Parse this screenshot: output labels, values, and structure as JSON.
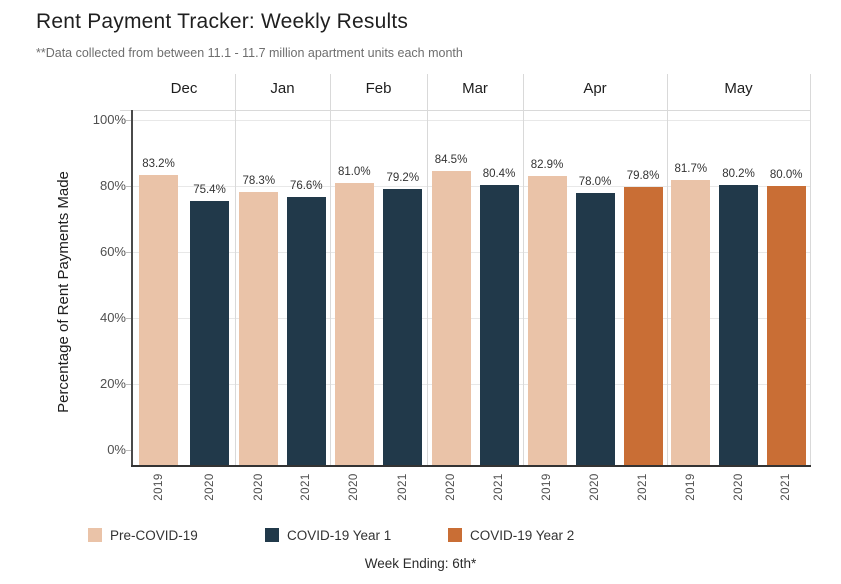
{
  "header": {
    "title": "Rent Payment Tracker: Weekly Results",
    "subtitle": "**Data collected from between 11.1 - 11.7 million apartment units each month"
  },
  "chart_data": {
    "type": "bar",
    "title": "Rent Payment Tracker: Weekly Results",
    "subtitle": "**Data collected from between 11.1 - 11.7 million apartment units each month",
    "ylabel": "Percentage of Rent Payments Made",
    "xlabel": "Week Ending: 6th*",
    "ylim": [
      0,
      100
    ],
    "ytick_labels": [
      "0%",
      "20%",
      "40%",
      "60%",
      "80%",
      "100%"
    ],
    "grid": true,
    "legend_position": "bottom",
    "legend": [
      {
        "label": "Pre-COVID-19",
        "color": "#eac3a8"
      },
      {
        "label": "COVID-19 Year 1",
        "color": "#21394a"
      },
      {
        "label": "COVID-19 Year 2",
        "color": "#c96e35"
      }
    ],
    "groups": [
      {
        "month": "Dec",
        "bars": [
          {
            "year": "2019",
            "value": 83.2,
            "label": "83.2%",
            "series": "Pre-COVID-19"
          },
          {
            "year": "2020",
            "value": 75.4,
            "label": "75.4%",
            "series": "COVID-19 Year 1"
          }
        ]
      },
      {
        "month": "Jan",
        "bars": [
          {
            "year": "2020",
            "value": 78.3,
            "label": "78.3%",
            "series": "Pre-COVID-19"
          },
          {
            "year": "2021",
            "value": 76.6,
            "label": "76.6%",
            "series": "COVID-19 Year 1"
          }
        ]
      },
      {
        "month": "Feb",
        "bars": [
          {
            "year": "2020",
            "value": 81.0,
            "label": "81.0%",
            "series": "Pre-COVID-19"
          },
          {
            "year": "2021",
            "value": 79.2,
            "label": "79.2%",
            "series": "COVID-19 Year 1"
          }
        ]
      },
      {
        "month": "Mar",
        "bars": [
          {
            "year": "2020",
            "value": 84.5,
            "label": "84.5%",
            "series": "Pre-COVID-19"
          },
          {
            "year": "2021",
            "value": 80.4,
            "label": "80.4%",
            "series": "COVID-19 Year 1"
          }
        ]
      },
      {
        "month": "Apr",
        "bars": [
          {
            "year": "2019",
            "value": 82.9,
            "label": "82.9%",
            "series": "Pre-COVID-19"
          },
          {
            "year": "2020",
            "value": 78.0,
            "label": "78.0%",
            "series": "COVID-19 Year 1"
          },
          {
            "year": "2021",
            "value": 79.8,
            "label": "79.8%",
            "series": "COVID-19 Year 2"
          }
        ]
      },
      {
        "month": "May",
        "bars": [
          {
            "year": "2019",
            "value": 81.7,
            "label": "81.7%",
            "series": "Pre-COVID-19"
          },
          {
            "year": "2020",
            "value": 80.2,
            "label": "80.2%",
            "series": "COVID-19 Year 1"
          },
          {
            "year": "2021",
            "value": 80.0,
            "label": "80.0%",
            "series": "COVID-19 Year 2"
          }
        ]
      }
    ],
    "caption": "Week Ending: 6th*"
  },
  "colors": {
    "pre_covid": "#eac3a8",
    "covid_year1": "#21394a",
    "covid_year2": "#c96e35",
    "axis": "#333333",
    "gridline": "#e8e8e8"
  }
}
